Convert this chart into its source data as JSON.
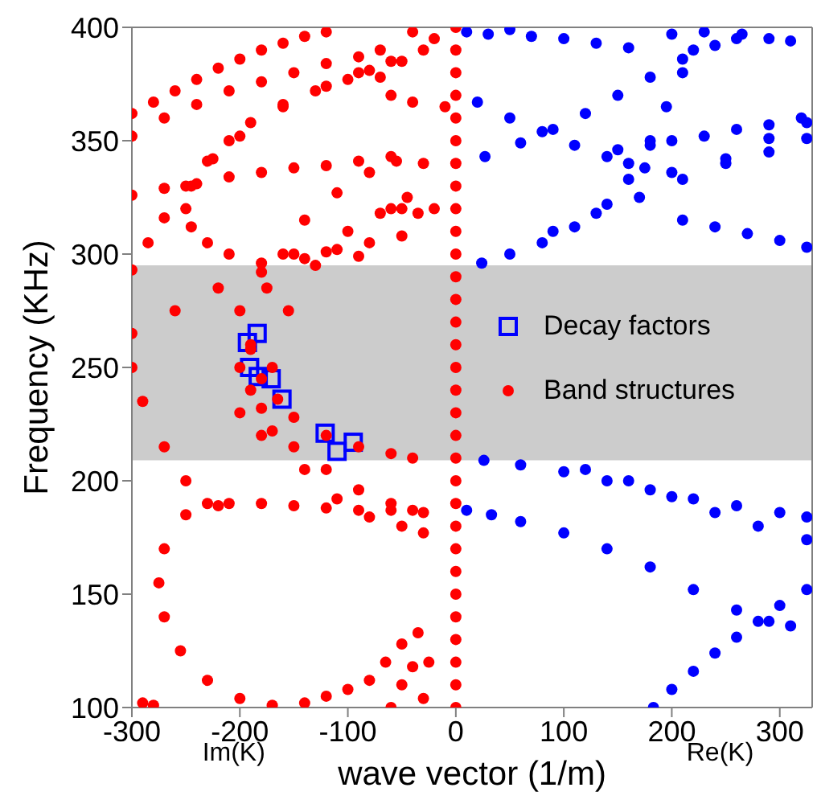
{
  "chart_data": {
    "type": "scatter",
    "xlabel": "wave vector (1/m)",
    "ylabel": "Frequency (KHz)",
    "xlim": [
      -300,
      330
    ],
    "ylim": [
      100,
      400
    ],
    "xticks": [
      -300,
      -200,
      -100,
      0,
      100,
      200,
      300
    ],
    "yticks": [
      100,
      150,
      200,
      250,
      300,
      350,
      400
    ],
    "legend": "right",
    "annotations": [
      "Im(K)",
      "Re(K)"
    ],
    "bands": [
      {
        "axis": "y",
        "from": 209,
        "to": 295,
        "color": "#cccccc"
      }
    ],
    "series": [
      {
        "name": "Decay factors",
        "color": "#0000ff",
        "marker": "square",
        "x": [
          -193,
          -184,
          -191,
          -183,
          -171,
          -161,
          -121,
          -110,
          -95
        ],
        "values": [
          261,
          265,
          250,
          246,
          245,
          236,
          221,
          213,
          217
        ]
      },
      {
        "name": "Band structures",
        "color": "#ff0000",
        "marker": "circle",
        "x": [
          -300,
          -280,
          -260,
          -240,
          -220,
          -200,
          -180,
          -160,
          -140,
          -120,
          -300,
          -270,
          -240,
          -210,
          -180,
          -150,
          -120,
          -90,
          -70,
          -300,
          -285,
          -270,
          -250,
          -230,
          -210,
          -190,
          -160,
          -130,
          -100,
          -80,
          -60,
          -90,
          -120,
          -160,
          -200,
          -225,
          -245,
          -250,
          -245,
          -230,
          -210,
          -180,
          -150,
          -120,
          -90,
          -300,
          -270,
          -240,
          -210,
          -180,
          -150,
          -120,
          -90,
          -60,
          -200,
          -190,
          -175,
          -160,
          -140,
          -110,
          -80,
          -55,
          -180,
          -170,
          -155,
          -130,
          -100,
          -70,
          -50,
          -300,
          -260,
          -220,
          -180,
          -140,
          -110,
          -80,
          -50,
          -300,
          -290,
          -270,
          -250,
          -230,
          -200,
          -190,
          -180,
          -165,
          -150,
          -120,
          -90,
          -60,
          -40,
          -200,
          -180,
          -150,
          -120,
          -90,
          -60,
          -40,
          -190,
          -170,
          -140,
          -110,
          -80,
          -50,
          -30,
          -220,
          -250,
          -270,
          -275,
          -270,
          -255,
          -230,
          -200,
          -170,
          -140,
          -120,
          -100,
          -80,
          -65,
          -50,
          -35,
          -210,
          -180,
          -150,
          -120,
          -90,
          -60,
          -30,
          -290,
          -280,
          -60,
          -50,
          -40,
          -25,
          -30,
          -40,
          -30,
          -50,
          -70,
          -60,
          -40,
          -20,
          -10,
          -30,
          -45,
          -35,
          -20,
          -60,
          0,
          0,
          0,
          0,
          0,
          0,
          0,
          0,
          0,
          0,
          0,
          0,
          0,
          0,
          0,
          0,
          0,
          0,
          0,
          0,
          0,
          0,
          0,
          0,
          0,
          0,
          0,
          0,
          0,
          0,
          0
        ],
        "values": [
          362,
          367,
          372,
          377,
          382,
          386,
          390,
          393,
          396,
          398,
          352,
          360,
          366,
          372,
          376,
          380,
          384,
          387,
          390,
          293,
          305,
          316,
          330,
          341,
          350,
          358,
          366,
          372,
          377,
          381,
          385,
          380,
          374,
          365,
          352,
          342,
          330,
          320,
          312,
          305,
          300,
          296,
          300,
          301,
          299,
          326,
          329,
          331,
          334,
          336,
          338,
          339,
          341,
          343,
          230,
          260,
          285,
          300,
          315,
          327,
          336,
          341,
          220,
          250,
          275,
          295,
          310,
          318,
          320,
          265,
          275,
          285,
          292,
          298,
          302,
          305,
          308,
          250,
          235,
          215,
          200,
          190,
          275,
          258,
          245,
          236,
          228,
          220,
          215,
          212,
          210,
          250,
          232,
          215,
          205,
          196,
          190,
          187,
          240,
          222,
          205,
          192,
          184,
          180,
          177,
          189,
          185,
          170,
          155,
          140,
          125,
          112,
          104,
          101,
          102,
          105,
          108,
          112,
          120,
          128,
          133,
          190,
          190,
          189,
          188,
          187,
          187,
          186,
          102,
          101,
          100,
          110,
          118,
          120,
          104,
          398,
          390,
          385,
          378,
          370,
          367,
          395,
          365,
          340,
          325,
          318,
          320,
          320,
          100,
          110,
          120,
          130,
          140,
          150,
          160,
          170,
          180,
          190,
          200,
          210,
          220,
          230,
          240,
          250,
          260,
          270,
          280,
          290,
          300,
          310,
          320,
          330,
          340,
          350,
          360,
          370,
          380,
          390,
          400
        ]
      },
      {
        "color": "#0000ff",
        "marker": "circle",
        "x": [
          10,
          30,
          50,
          70,
          100,
          130,
          160,
          200,
          230,
          260,
          290,
          310,
          20,
          50,
          80,
          110,
          140,
          160,
          175,
          27,
          60,
          90,
          120,
          150,
          180,
          210,
          240,
          265,
          24,
          50,
          80,
          110,
          140,
          160,
          180,
          195,
          210,
          220,
          150,
          180,
          200,
          230,
          260,
          290,
          320,
          90,
          130,
          170,
          210,
          250,
          290,
          325,
          200,
          250,
          290,
          325,
          210,
          240,
          270,
          300,
          325,
          26,
          60,
          100,
          140,
          180,
          220,
          260,
          300,
          325,
          120,
          160,
          200,
          240,
          280,
          325,
          33,
          60,
          100,
          140,
          180,
          220,
          260,
          290,
          310,
          183,
          200,
          220,
          240,
          260,
          280,
          300,
          325,
          10
        ],
        "values": [
          398,
          397,
          399,
          396,
          395,
          393,
          391,
          397,
          398,
          395,
          395,
          394,
          367,
          360,
          354,
          348,
          343,
          340,
          338,
          343,
          349,
          355,
          362,
          370,
          378,
          386,
          392,
          397,
          296,
          300,
          305,
          312,
          322,
          333,
          350,
          365,
          380,
          390,
          346,
          348,
          350,
          352,
          355,
          357,
          360,
          310,
          318,
          325,
          333,
          342,
          351,
          358,
          336,
          340,
          345,
          351,
          315,
          312,
          309,
          306,
          303,
          209,
          207,
          204,
          200,
          196,
          192,
          189,
          186,
          184,
          205,
          200,
          193,
          186,
          180,
          174,
          185,
          182,
          177,
          170,
          162,
          152,
          143,
          138,
          136,
          100,
          108,
          116,
          124,
          131,
          138,
          145,
          152,
          187
        ]
      }
    ]
  }
}
